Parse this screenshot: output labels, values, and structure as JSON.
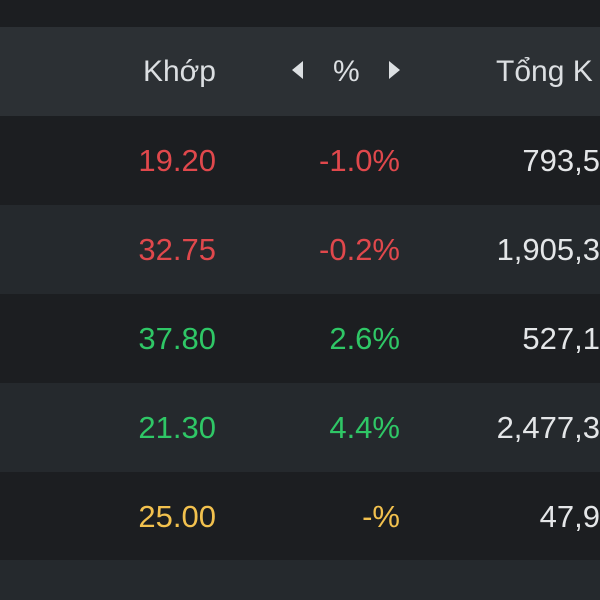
{
  "colors": {
    "down": "#e0484c",
    "up": "#2fc766",
    "ref": "#f2c14e",
    "text": "#e4e6e8"
  },
  "header": {
    "price_label": "Khớp",
    "pct_label": "%",
    "volume_label": "Tổng K",
    "left_arrow_icon": "caret-left-icon",
    "right_arrow_icon": "caret-right-icon"
  },
  "rows": [
    {
      "price": "19.20",
      "change": "-1.0%",
      "volume": "793,5",
      "status": "down"
    },
    {
      "price": "32.75",
      "change": "-0.2%",
      "volume": "1,905,3",
      "status": "down"
    },
    {
      "price": "37.80",
      "change": "2.6%",
      "volume": "527,1",
      "status": "up"
    },
    {
      "price": "21.30",
      "change": "4.4%",
      "volume": "2,477,3",
      "status": "up"
    },
    {
      "price": "25.00",
      "change": "-%",
      "volume": "47,9",
      "status": "ref"
    }
  ]
}
